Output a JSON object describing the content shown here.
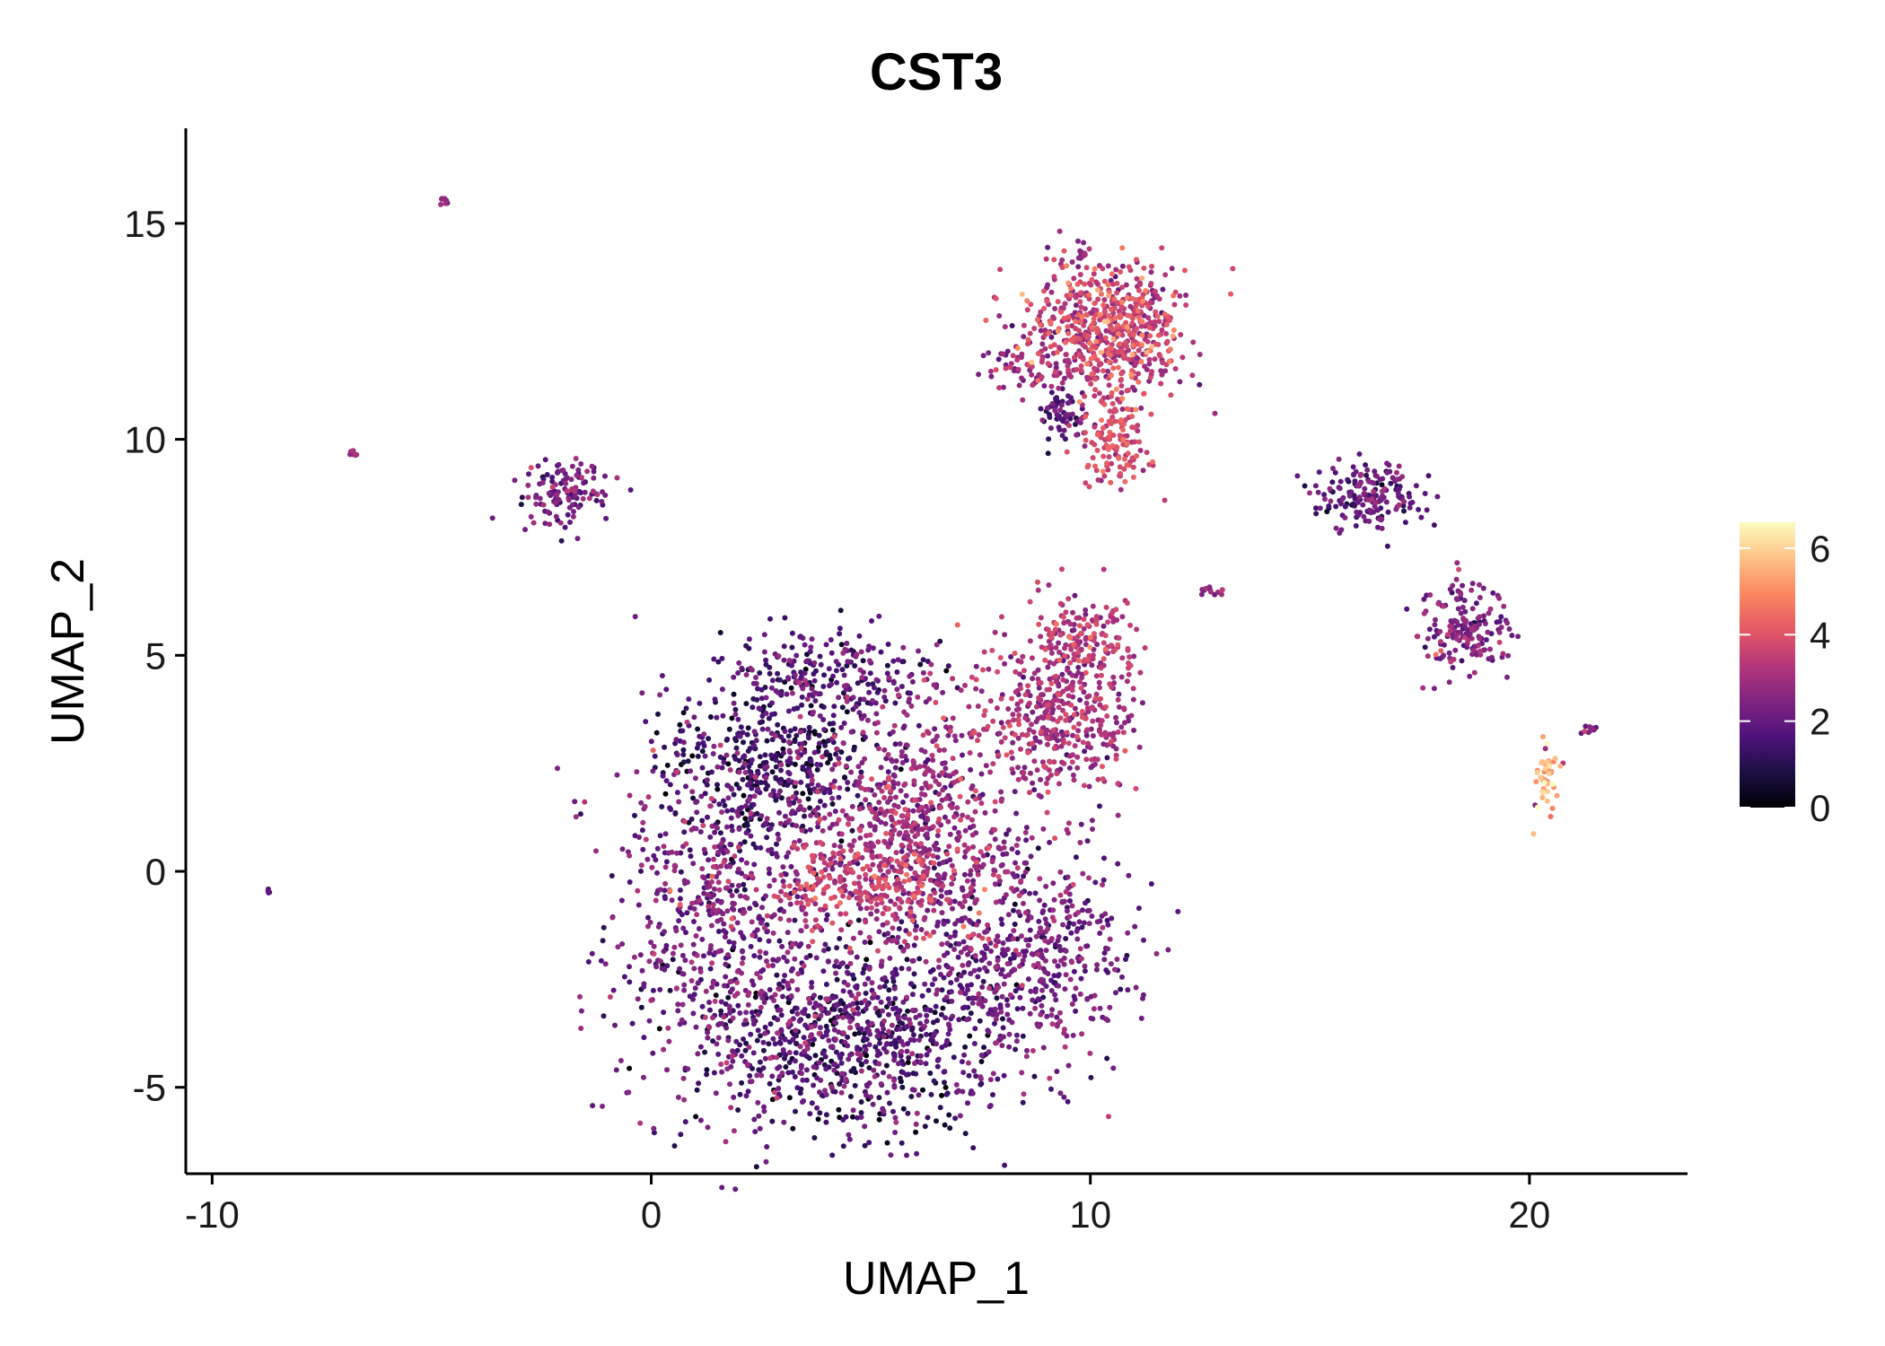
{
  "chart_data": {
    "type": "scatter",
    "title": "CST3",
    "xlabel": "UMAP_1",
    "ylabel": "UMAP_2",
    "xlim": [
      -10.6,
      23.6
    ],
    "ylim": [
      -7.0,
      17.2
    ],
    "xticks": [
      -10,
      0,
      10,
      20
    ],
    "xtick_labels": [
      "-10",
      "0",
      "10",
      "20"
    ],
    "yticks": [
      -5,
      0,
      5,
      10,
      15
    ],
    "ytick_labels": [
      "-5",
      "0",
      "5",
      "10",
      "15"
    ],
    "grid": false,
    "legend": {
      "position": "right",
      "title": "",
      "min": 0,
      "max": 6.6,
      "ticks": [
        0,
        2,
        4,
        6
      ],
      "tick_labels": [
        "0",
        "2",
        "4",
        "6"
      ],
      "colormap": [
        "#000004",
        "#1c1044",
        "#4f127b",
        "#812581",
        "#b5367a",
        "#e55964",
        "#fb8761",
        "#fec287",
        "#fcfdbf"
      ]
    },
    "clusters": [
      {
        "name": "main-left-lobe",
        "cx": 1.6,
        "cy": -1.0,
        "sx": 1.3,
        "sy": 2.3,
        "n": 700,
        "mean": 2.2,
        "sd": 0.6
      },
      {
        "name": "main-upper-left",
        "cx": 2.8,
        "cy": 2.6,
        "sx": 1.2,
        "sy": 1.0,
        "n": 420,
        "mean": 1.2,
        "sd": 0.6
      },
      {
        "name": "main-top",
        "cx": 4.2,
        "cy": 4.6,
        "sx": 1.3,
        "sy": 0.5,
        "n": 220,
        "mean": 1.8,
        "sd": 0.6
      },
      {
        "name": "main-center",
        "cx": 6.0,
        "cy": 1.0,
        "sx": 1.2,
        "sy": 1.4,
        "n": 650,
        "mean": 2.7,
        "sd": 0.6
      },
      {
        "name": "main-center-band",
        "cx": 5.0,
        "cy": -0.3,
        "sx": 1.3,
        "sy": 0.5,
        "n": 260,
        "mean": 3.5,
        "sd": 0.5
      },
      {
        "name": "main-bottom",
        "cx": 4.8,
        "cy": -3.8,
        "sx": 1.7,
        "sy": 1.1,
        "n": 850,
        "mean": 1.6,
        "sd": 0.7
      },
      {
        "name": "main-right-lobe",
        "cx": 8.6,
        "cy": -1.8,
        "sx": 1.2,
        "sy": 1.2,
        "n": 500,
        "mean": 2.2,
        "sd": 0.6
      },
      {
        "name": "arm-lower",
        "cx": 9.3,
        "cy": 3.6,
        "sx": 0.9,
        "sy": 0.9,
        "n": 420,
        "mean": 3.0,
        "sd": 0.6
      },
      {
        "name": "arm-upper",
        "cx": 9.8,
        "cy": 5.4,
        "sx": 0.6,
        "sy": 0.5,
        "n": 150,
        "mean": 3.3,
        "sd": 0.5
      },
      {
        "name": "top-cluster",
        "cx": 10.4,
        "cy": 12.6,
        "sx": 0.9,
        "sy": 0.7,
        "n": 600,
        "mean": 3.5,
        "sd": 0.7
      },
      {
        "name": "top-cluster-tail",
        "cx": 10.6,
        "cy": 10.0,
        "sx": 0.4,
        "sy": 0.6,
        "n": 140,
        "mean": 3.8,
        "sd": 0.5
      },
      {
        "name": "top-left-arm",
        "cx": 8.6,
        "cy": 11.8,
        "sx": 0.5,
        "sy": 0.4,
        "n": 70,
        "mean": 2.8,
        "sd": 0.6
      },
      {
        "name": "top-small-left",
        "cx": 9.4,
        "cy": 10.6,
        "sx": 0.3,
        "sy": 0.3,
        "n": 60,
        "mean": 1.6,
        "sd": 0.5
      },
      {
        "name": "left-cluster",
        "cx": -2.0,
        "cy": 8.8,
        "sx": 0.5,
        "sy": 0.4,
        "n": 130,
        "mean": 2.2,
        "sd": 0.6
      },
      {
        "name": "right-mid-cluster",
        "cx": 16.3,
        "cy": 8.7,
        "sx": 0.6,
        "sy": 0.4,
        "n": 180,
        "mean": 1.9,
        "sd": 0.6
      },
      {
        "name": "right-lower-cluster",
        "cx": 18.5,
        "cy": 5.6,
        "sx": 0.5,
        "sy": 0.5,
        "n": 170,
        "mean": 2.3,
        "sd": 0.6
      },
      {
        "name": "far-right-small",
        "cx": 20.4,
        "cy": 2.1,
        "sx": 0.15,
        "sy": 0.45,
        "n": 45,
        "mean": 5.3,
        "sd": 0.9
      },
      {
        "name": "isolated-top",
        "cx": -4.7,
        "cy": 15.5,
        "sx": 0.05,
        "sy": 0.05,
        "n": 8,
        "mean": 2.6,
        "sd": 0.3
      },
      {
        "name": "isolated-left",
        "cx": -6.8,
        "cy": 9.7,
        "sx": 0.05,
        "sy": 0.05,
        "n": 8,
        "mean": 2.8,
        "sd": 0.3
      },
      {
        "name": "isolated-bottom-left",
        "cx": -8.7,
        "cy": -0.45,
        "sx": 0.04,
        "sy": 0.04,
        "n": 5,
        "mean": 2.0,
        "sd": 0.3
      },
      {
        "name": "spur-top",
        "cx": 9.8,
        "cy": 14.3,
        "sx": 0.08,
        "sy": 0.15,
        "n": 15,
        "mean": 2.4,
        "sd": 0.4
      },
      {
        "name": "spur-right",
        "cx": 12.8,
        "cy": 6.5,
        "sx": 0.15,
        "sy": 0.06,
        "n": 12,
        "mean": 2.5,
        "sd": 0.4
      },
      {
        "name": "spur-far-right",
        "cx": 21.4,
        "cy": 3.3,
        "sx": 0.12,
        "sy": 0.06,
        "n": 10,
        "mean": 2.4,
        "sd": 0.4
      }
    ]
  }
}
